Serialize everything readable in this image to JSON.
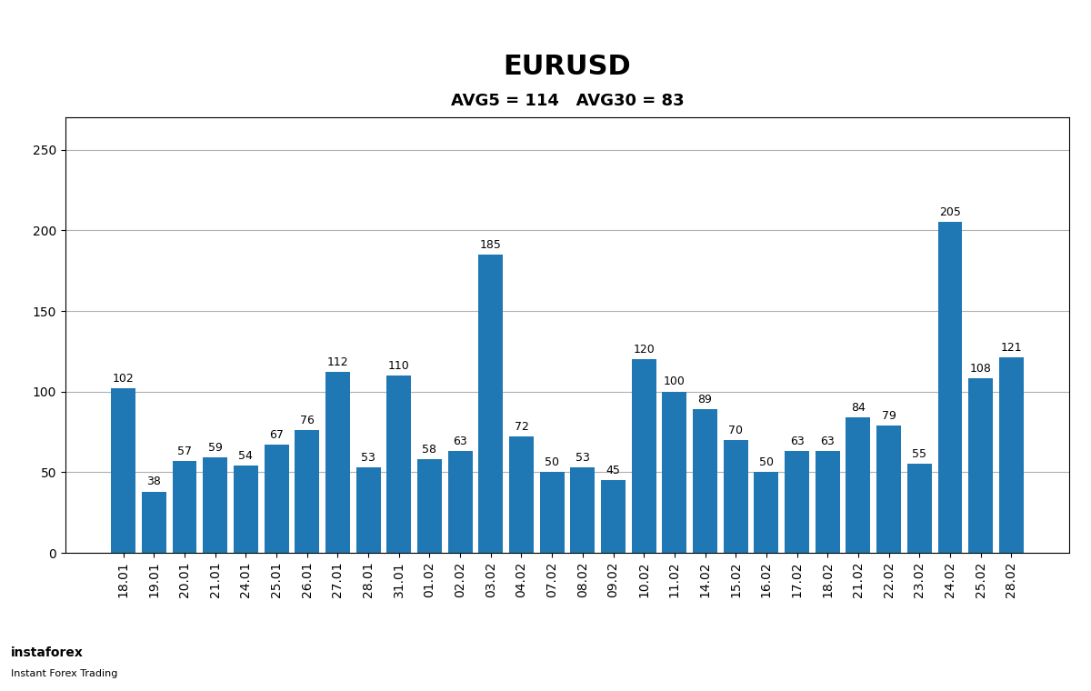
{
  "chart_data": {
    "type": "bar",
    "title": "EURUSD",
    "subtitle": "AVG5 = 114   AVG30 = 83",
    "categories": [
      "18.01",
      "19.01",
      "20.01",
      "21.01",
      "24.01",
      "25.01",
      "26.01",
      "27.01",
      "28.01",
      "31.01",
      "01.02",
      "02.02",
      "03.02",
      "04.02",
      "07.02",
      "08.02",
      "09.02",
      "10.02",
      "11.02",
      "14.02",
      "15.02",
      "16.02",
      "17.02",
      "18.02",
      "21.02",
      "22.02",
      "23.02",
      "24.02",
      "25.02",
      "28.02"
    ],
    "values": [
      102,
      38,
      57,
      59,
      54,
      67,
      76,
      112,
      53,
      110,
      58,
      63,
      185,
      72,
      50,
      53,
      45,
      120,
      100,
      89,
      70,
      50,
      63,
      63,
      84,
      79,
      55,
      205,
      108,
      121
    ],
    "ylim": [
      0,
      270
    ],
    "yticks": [
      0,
      50,
      100,
      150,
      200,
      250
    ],
    "grid": true,
    "data_labels": true,
    "annotations": [
      "instaforex",
      "Instant Forex Trading"
    ]
  }
}
